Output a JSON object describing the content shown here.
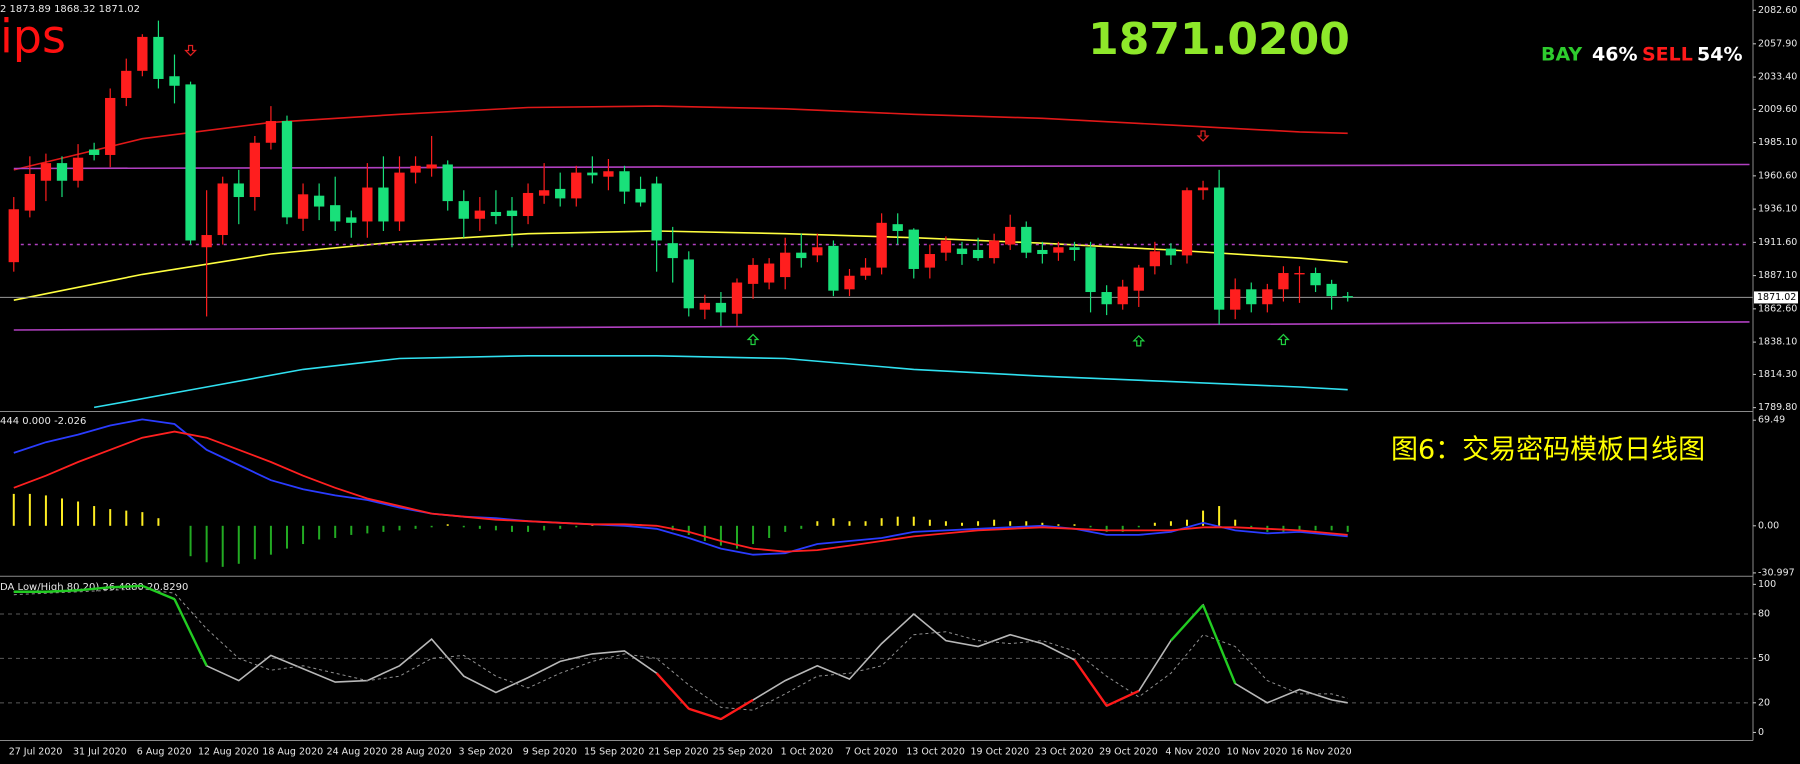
{
  "overlay_text": {
    "symbol": "ips",
    "price": "1871.0200",
    "bay_label": "BAY",
    "bay_value": "46%",
    "sell_label": "SELL",
    "sell_value": "54%",
    "caption": "图6：交易密码模板日线图"
  },
  "chart_data": [
    {
      "type": "candlestick",
      "title": "2 1873.89 1868.32 1871.02",
      "categories": [
        null,
        "27 Jul 2020",
        null,
        null,
        null,
        "31 Jul 2020",
        null,
        null,
        null,
        "6 Aug 2020",
        null,
        null,
        null,
        "12 Aug 2020",
        null,
        null,
        null,
        "18 Aug 2020",
        null,
        null,
        null,
        "24 Aug 2020",
        null,
        null,
        null,
        "28 Aug 2020",
        null,
        null,
        null,
        "3 Sep 2020",
        null,
        null,
        null,
        "9 Sep 2020",
        null,
        null,
        null,
        "15 Sep 2020",
        null,
        null,
        null,
        "21 Sep 2020",
        null,
        null,
        null,
        "25 Sep 2020",
        null,
        null,
        null,
        "1 Oct 2020",
        null,
        null,
        null,
        "7 Oct 2020",
        null,
        null,
        null,
        "13 Oct 2020",
        null,
        null,
        null,
        "19 Oct 2020",
        null,
        null,
        null,
        "23 Oct 2020",
        null,
        null,
        null,
        "29 Oct 2020",
        null,
        null,
        null,
        "4 Nov 2020",
        null,
        null,
        null,
        "10 Nov 2020",
        null,
        null,
        null,
        "16 Nov 2020",
        null,
        null
      ],
      "open": [
        1897,
        1935,
        1957,
        1970,
        1957,
        1980,
        1976,
        2018,
        2038,
        2063,
        2034,
        2028,
        1908,
        1917,
        1955,
        1945,
        1985,
        2001,
        1929,
        1946,
        1939,
        1930,
        1927,
        1952,
        1927,
        1963,
        1966,
        1969,
        1942,
        1929,
        1934,
        1935,
        1931,
        1946,
        1951,
        1944,
        1963,
        1960,
        1964,
        1951,
        1955,
        1911,
        1899,
        1862,
        1867,
        1859,
        1881,
        1882,
        1886,
        1904,
        1902,
        1909,
        1877,
        1887,
        1893,
        1925,
        1921,
        1893,
        1904,
        1907,
        1906,
        1900,
        1910,
        1923,
        1906,
        1904,
        1908,
        1908,
        1875,
        1866,
        1876,
        1894,
        1907,
        1902,
        1950,
        1952,
        1862,
        1877,
        1866,
        1877,
        1888,
        1889,
        1881,
        1872
      ],
      "high": [
        1945,
        1975,
        1977,
        1975,
        1984,
        1985,
        2025,
        2047,
        2065,
        2075,
        2050,
        2030,
        1950,
        1960,
        1965,
        1990,
        2012,
        2005,
        1955,
        1955,
        1960,
        1935,
        1970,
        1975,
        1975,
        1975,
        1990,
        1972,
        1950,
        1945,
        1950,
        1945,
        1955,
        1970,
        1963,
        1968,
        1975,
        1973,
        1968,
        1960,
        1960,
        1923,
        1905,
        1873,
        1875,
        1885,
        1900,
        1900,
        1915,
        1918,
        1918,
        1913,
        1892,
        1900,
        1933,
        1933,
        1922,
        1910,
        1916,
        1912,
        1915,
        1918,
        1932,
        1927,
        1912,
        1912,
        1912,
        1912,
        1880,
        1884,
        1895,
        1912,
        1911,
        1952,
        1957,
        1965,
        1885,
        1882,
        1881,
        1894,
        1894,
        1893,
        1884,
        1875
      ],
      "low": [
        1890,
        1930,
        1942,
        1945,
        1952,
        1972,
        1967,
        2012,
        2034,
        2025,
        2014,
        1910,
        1857,
        1910,
        1925,
        1935,
        1980,
        1925,
        1920,
        1928,
        1920,
        1915,
        1915,
        1920,
        1920,
        1955,
        1960,
        1935,
        1915,
        1920,
        1925,
        1908,
        1925,
        1940,
        1938,
        1938,
        1955,
        1950,
        1940,
        1938,
        1890,
        1882,
        1857,
        1855,
        1850,
        1850,
        1870,
        1877,
        1877,
        1893,
        1897,
        1872,
        1872,
        1884,
        1888,
        1910,
        1885,
        1885,
        1898,
        1895,
        1898,
        1896,
        1906,
        1900,
        1896,
        1898,
        1898,
        1860,
        1858,
        1862,
        1864,
        1888,
        1895,
        1896,
        1943,
        1851,
        1855,
        1860,
        1860,
        1868,
        1867,
        1875,
        1862,
        1868
      ],
      "close": [
        1936,
        1962,
        1970,
        1957,
        1974,
        1976,
        2018,
        2038,
        2063,
        2032,
        2027,
        1913,
        1917,
        1955,
        1945,
        1985,
        2001,
        1930,
        1947,
        1938,
        1927,
        1926,
        1952,
        1927,
        1963,
        1968,
        1969,
        1942,
        1929,
        1935,
        1931,
        1931,
        1948,
        1950,
        1944,
        1963,
        1961,
        1964,
        1949,
        1941,
        1913,
        1900,
        1863,
        1867,
        1860,
        1882,
        1895,
        1896,
        1904,
        1900,
        1908,
        1876,
        1887,
        1893,
        1926,
        1920,
        1892,
        1903,
        1913,
        1903,
        1900,
        1913,
        1923,
        1904,
        1903,
        1908,
        1906,
        1875,
        1866,
        1879,
        1893,
        1905,
        1902,
        1950,
        1952,
        1862,
        1877,
        1866,
        1877,
        1889,
        1889,
        1880,
        1872,
        1871.02
      ],
      "up_color": "#ff1e1e",
      "down_color": "#19e07a",
      "ylim": [
        1788.2,
        2088.5
      ],
      "yticks": [
        {
          "value": 2082.6,
          "label": "2082.60"
        },
        {
          "value": 2057.9,
          "label": "2057.90"
        },
        {
          "value": 2033.4,
          "label": "2033.40"
        },
        {
          "value": 2009.6,
          "label": "2009.60"
        },
        {
          "value": 1985.1,
          "label": "1985.10"
        },
        {
          "value": 1960.6,
          "label": "1960.60"
        },
        {
          "value": 1936.1,
          "label": "1936.10"
        },
        {
          "value": 1911.6,
          "label": "1911.60"
        },
        {
          "value": 1887.1,
          "label": "1887.10"
        },
        {
          "value": 1862.6,
          "label": "1862.60"
        },
        {
          "value": 1838.1,
          "label": "1838.10"
        },
        {
          "value": 1814.3,
          "label": "1814.30"
        },
        {
          "value": 1789.8,
          "label": "1789.80"
        }
      ],
      "last_price": 1871.02,
      "overlays": [
        {
          "color": "#e01818",
          "x": [
            0,
            8,
            16,
            24,
            32,
            40,
            48,
            56,
            64,
            72,
            80,
            83
          ],
          "values": [
            1965,
            1988,
            2000,
            2006,
            2011,
            2012,
            2010,
            2006,
            2003,
            1998,
            1993,
            1992
          ]
        },
        {
          "color": "#ffff40",
          "x": [
            0,
            8,
            16,
            24,
            32,
            40,
            48,
            56,
            64,
            72,
            80,
            83
          ],
          "values": [
            1869,
            1888,
            1903,
            1912,
            1918,
            1920,
            1918,
            1915,
            1911,
            1906,
            1900,
            1897
          ]
        },
        {
          "color": "#30e0f0",
          "x": [
            5,
            12,
            18,
            24,
            32,
            40,
            48,
            56,
            64,
            72,
            80,
            83
          ],
          "values": [
            1790,
            1805,
            1818,
            1826,
            1828,
            1828,
            1826,
            1818,
            1813,
            1809,
            1805,
            1803
          ]
        },
        {
          "color": "#b040c0",
          "x": [
            0,
            108
          ],
          "values": [
            1966,
            1969
          ]
        },
        {
          "color": "#b040c0",
          "x": [
            0,
            108
          ],
          "values": [
            1847,
            1853
          ]
        },
        {
          "color": "#b040c0",
          "x": [
            0,
            108
          ],
          "values": [
            1910,
            1910
          ],
          "dash": true
        }
      ],
      "arrows": [
        {
          "index": 11,
          "value": 2053,
          "dir": "down",
          "color": "#e02020"
        },
        {
          "index": 74,
          "value": 1990,
          "dir": "down",
          "color": "#e02020"
        },
        {
          "index": 46,
          "value": 1840,
          "dir": "up",
          "color": "#20d040"
        },
        {
          "index": 70,
          "value": 1839,
          "dir": "up",
          "color": "#20d040"
        },
        {
          "index": 79,
          "value": 1840,
          "dir": "up",
          "color": "#20d040"
        }
      ]
    },
    {
      "type": "macd",
      "title": "444 0.000 -2.026",
      "values": [
        21,
        21,
        20,
        18,
        16,
        13,
        11,
        10,
        9,
        5,
        0,
        -20,
        -24,
        -27,
        -25,
        -22,
        -19,
        -15,
        -12,
        -9,
        -8,
        -6,
        -5,
        -4,
        -3,
        -2,
        -1,
        1,
        -1,
        -2,
        -3,
        -4,
        -4,
        -3,
        -2,
        -1,
        1,
        1,
        1,
        1,
        0,
        -3,
        -6,
        -10,
        -13,
        -15,
        -12,
        -8,
        -4,
        -2,
        3,
        5,
        3,
        3,
        5,
        6,
        6,
        4,
        3,
        2,
        3,
        4,
        3,
        3,
        2,
        1,
        1,
        -1,
        -4,
        -4,
        -1,
        2,
        3,
        4,
        10,
        13,
        4,
        -2,
        -4,
        -4,
        -3,
        -3,
        -3,
        -4
      ],
      "pos_color": "#ffee22",
      "neg_color": "#22aa22",
      "series": [
        {
          "color": "#2a3cff",
          "x": [
            0,
            2,
            4,
            6,
            8,
            10,
            12,
            14,
            16,
            18,
            20,
            22,
            24,
            26,
            28,
            30,
            32,
            34,
            36,
            38,
            40,
            42,
            44,
            46,
            48,
            50,
            52,
            54,
            56,
            58,
            60,
            62,
            64,
            66,
            68,
            70,
            72,
            74,
            76,
            78,
            80,
            82,
            83
          ],
          "values": [
            48,
            55,
            60,
            66,
            70,
            67,
            50,
            40,
            30,
            24,
            20,
            17,
            12,
            8,
            6,
            5,
            3,
            2,
            1,
            0,
            -2,
            -8,
            -15,
            -19,
            -18,
            -12,
            -10,
            -8,
            -4,
            -3,
            -2,
            -1,
            0,
            -2,
            -6,
            -6,
            -4,
            2,
            -3,
            -5,
            -4,
            -6,
            -7
          ]
        },
        {
          "color": "#ff2020",
          "x": [
            0,
            2,
            4,
            6,
            8,
            10,
            12,
            14,
            16,
            18,
            20,
            22,
            24,
            26,
            28,
            30,
            32,
            34,
            36,
            38,
            40,
            42,
            44,
            46,
            48,
            50,
            52,
            54,
            56,
            58,
            60,
            62,
            64,
            66,
            68,
            70,
            72,
            74,
            76,
            78,
            80,
            82,
            83
          ],
          "values": [
            25,
            33,
            42,
            50,
            58,
            62,
            58,
            50,
            42,
            33,
            25,
            18,
            13,
            8,
            6,
            4,
            3,
            2,
            1,
            1,
            0,
            -4,
            -10,
            -15,
            -17,
            -16,
            -13,
            -10,
            -7,
            -5,
            -3,
            -2,
            -1,
            -2,
            -3,
            -3,
            -3,
            -1,
            -1,
            -2,
            -3,
            -5,
            -6
          ]
        }
      ],
      "ylim": [
        -31.7,
        73.3
      ],
      "yticks": [
        69.49,
        {
          "value": 0,
          "label": "0.00"
        },
        -30.997
      ]
    },
    {
      "type": "stochastic",
      "title": "DA Low/High 80,20) 26.4080 20.8290",
      "series": [
        {
          "color": "#b8b8b8",
          "x": [
            0,
            2,
            4,
            6,
            8,
            10,
            12,
            14,
            16,
            18,
            20,
            22,
            24,
            26,
            28,
            30,
            32,
            34,
            36,
            38,
            40,
            42,
            44,
            46,
            48,
            50,
            52,
            54,
            56,
            58,
            60,
            62,
            64,
            66,
            68,
            70,
            72,
            74,
            76,
            78,
            80,
            82,
            83
          ],
          "values": [
            95,
            95,
            96,
            98,
            99,
            90,
            45,
            35,
            52,
            43,
            34,
            35,
            45,
            63,
            38,
            27,
            37,
            48,
            53,
            55,
            40,
            16,
            9,
            22,
            35,
            45,
            36,
            60,
            80,
            62,
            58,
            66,
            60,
            49,
            18,
            28,
            62,
            86,
            33,
            20,
            29,
            22,
            20
          ]
        },
        {
          "color": "#909090",
          "dash": true,
          "x": [
            0,
            2,
            4,
            6,
            8,
            10,
            12,
            14,
            16,
            18,
            20,
            22,
            24,
            26,
            28,
            30,
            32,
            34,
            36,
            38,
            40,
            42,
            44,
            46,
            48,
            50,
            52,
            54,
            56,
            58,
            60,
            62,
            64,
            66,
            68,
            70,
            72,
            74,
            76,
            78,
            80,
            82,
            83
          ],
          "values": [
            93,
            94,
            95,
            96,
            97,
            94,
            70,
            50,
            42,
            45,
            40,
            35,
            38,
            50,
            52,
            38,
            30,
            40,
            48,
            53,
            50,
            32,
            17,
            15,
            26,
            38,
            40,
            45,
            66,
            68,
            62,
            60,
            62,
            55,
            38,
            24,
            40,
            66,
            58,
            35,
            26,
            26,
            23
          ]
        }
      ],
      "high_color": "#22cc22",
      "low_color": "#ff1a1a",
      "levels": [
        20,
        50,
        80
      ],
      "ylim": [
        -5.4,
        103.9
      ],
      "yticks": [
        100,
        80,
        50,
        20,
        0
      ]
    }
  ]
}
